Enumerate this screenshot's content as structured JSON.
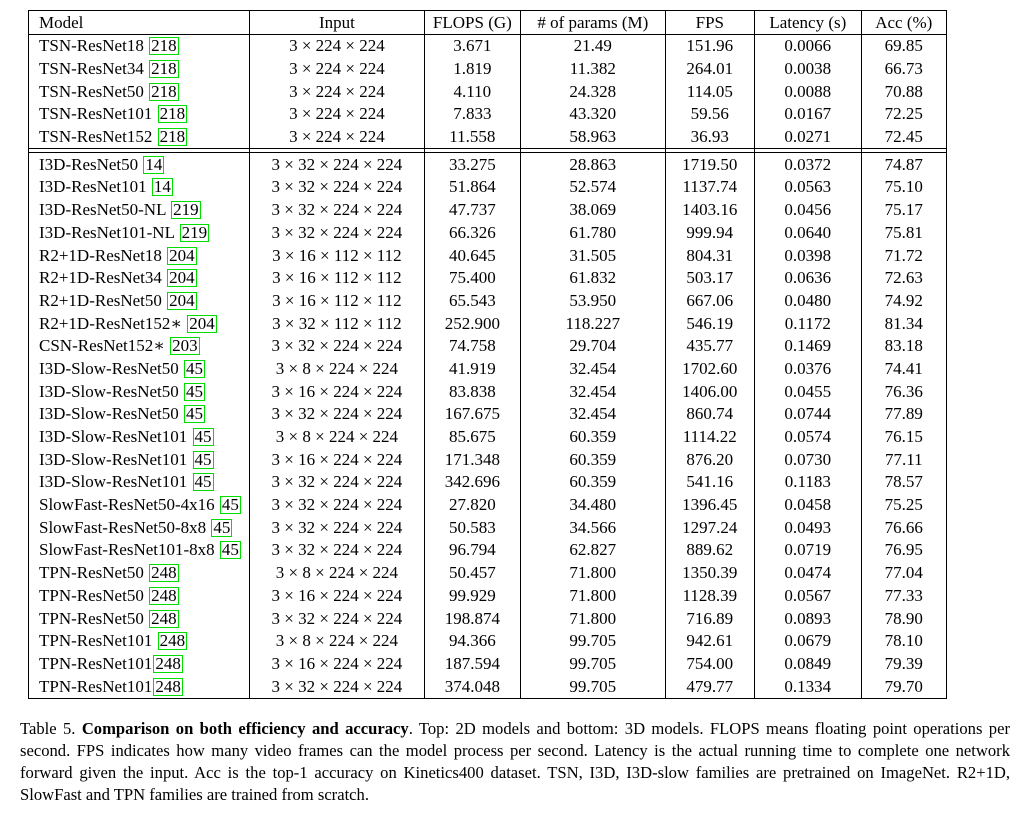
{
  "table": {
    "headers": [
      "Model",
      "Input",
      "FLOPS (G)",
      "# of params (M)",
      "FPS",
      "Latency (s)",
      "Acc (%)"
    ],
    "groups": [
      {
        "rows": [
          {
            "model": "TSN-ResNet18",
            "ref": "218",
            "input": "3 × 224 × 224",
            "flops": "3.671",
            "params": "21.49",
            "fps": "151.96",
            "latency": "0.0066",
            "acc": "69.85"
          },
          {
            "model": "TSN-ResNet34",
            "ref": "218",
            "input": "3 × 224 × 224",
            "flops": "1.819",
            "params": "11.382",
            "fps": "264.01",
            "latency": "0.0038",
            "acc": "66.73"
          },
          {
            "model": "TSN-ResNet50",
            "ref": "218",
            "input": "3 × 224 × 224",
            "flops": "4.110",
            "params": "24.328",
            "fps": "114.05",
            "latency": "0.0088",
            "acc": "70.88"
          },
          {
            "model": "TSN-ResNet101",
            "ref": "218",
            "input": "3 × 224 × 224",
            "flops": "7.833",
            "params": "43.320",
            "fps": "59.56",
            "latency": "0.0167",
            "acc": "72.25"
          },
          {
            "model": "TSN-ResNet152",
            "ref": "218",
            "input": "3 × 224 × 224",
            "flops": "11.558",
            "params": "58.963",
            "fps": "36.93",
            "latency": "0.0271",
            "acc": "72.45"
          }
        ]
      },
      {
        "rows": [
          {
            "model": "I3D-ResNet50",
            "ref": "14",
            "input": "3 × 32 × 224 × 224",
            "flops": "33.275",
            "params": "28.863",
            "fps": "1719.50",
            "latency": "0.0372",
            "acc": "74.87"
          },
          {
            "model": "I3D-ResNet101",
            "ref": "14",
            "input": "3 × 32 × 224 × 224",
            "flops": "51.864",
            "params": "52.574",
            "fps": "1137.74",
            "latency": "0.0563",
            "acc": "75.10"
          },
          {
            "model": "I3D-ResNet50-NL",
            "ref": "219",
            "input": "3 × 32 × 224 × 224",
            "flops": "47.737",
            "params": "38.069",
            "fps": "1403.16",
            "latency": "0.0456",
            "acc": "75.17"
          },
          {
            "model": "I3D-ResNet101-NL",
            "ref": "219",
            "input": "3 × 32 × 224 × 224",
            "flops": "66.326",
            "params": "61.780",
            "fps": "999.94",
            "latency": "0.0640",
            "acc": "75.81"
          },
          {
            "model": "R2+1D-ResNet18",
            "ref": "204",
            "input": "3 × 16 × 112 × 112",
            "flops": "40.645",
            "params": "31.505",
            "fps": "804.31",
            "latency": "0.0398",
            "acc": "71.72"
          },
          {
            "model": "R2+1D-ResNet34",
            "ref": "204",
            "input": "3 × 16 × 112 × 112",
            "flops": "75.400",
            "params": "61.832",
            "fps": "503.17",
            "latency": "0.0636",
            "acc": "72.63"
          },
          {
            "model": "R2+1D-ResNet50",
            "ref": "204",
            "input": "3 × 16 × 112 × 112",
            "flops": "65.543",
            "params": "53.950",
            "fps": "667.06",
            "latency": "0.0480",
            "acc": "74.92"
          },
          {
            "model": "R2+1D-ResNet152∗",
            "ref": "204",
            "input": "3 × 32 × 112 × 112",
            "flops": "252.900",
            "params": "118.227",
            "fps": "546.19",
            "latency": "0.1172",
            "acc": "81.34"
          },
          {
            "model": "CSN-ResNet152∗",
            "ref": "203",
            "input": "3 × 32 × 224 × 224",
            "flops": "74.758",
            "params": "29.704",
            "fps": "435.77",
            "latency": "0.1469",
            "acc": "83.18"
          },
          {
            "model": "I3D-Slow-ResNet50",
            "ref": "45",
            "input": "3 × 8 × 224 × 224",
            "flops": "41.919",
            "params": "32.454",
            "fps": "1702.60",
            "latency": "0.0376",
            "acc": "74.41"
          },
          {
            "model": "I3D-Slow-ResNet50",
            "ref": "45",
            "input": "3 × 16 × 224 × 224",
            "flops": "83.838",
            "params": "32.454",
            "fps": "1406.00",
            "latency": "0.0455",
            "acc": "76.36"
          },
          {
            "model": "I3D-Slow-ResNet50",
            "ref": "45",
            "input": "3 × 32 × 224 × 224",
            "flops": "167.675",
            "params": "32.454",
            "fps": "860.74",
            "latency": "0.0744",
            "acc": "77.89"
          },
          {
            "model": "I3D-Slow-ResNet101",
            "ref": "45",
            "input": "3 × 8 × 224 × 224",
            "flops": "85.675",
            "params": "60.359",
            "fps": "1114.22",
            "latency": "0.0574",
            "acc": "76.15"
          },
          {
            "model": "I3D-Slow-ResNet101",
            "ref": "45",
            "input": "3 × 16 × 224 × 224",
            "flops": "171.348",
            "params": "60.359",
            "fps": "876.20",
            "latency": "0.0730",
            "acc": "77.11"
          },
          {
            "model": "I3D-Slow-ResNet101",
            "ref": "45",
            "input": "3 × 32 × 224 × 224",
            "flops": "342.696",
            "params": "60.359",
            "fps": "541.16",
            "latency": "0.1183",
            "acc": "78.57"
          },
          {
            "model": "SlowFast-ResNet50-4x16",
            "ref": "45",
            "input": "3 × 32 × 224 × 224",
            "flops": "27.820",
            "params": "34.480",
            "fps": "1396.45",
            "latency": "0.0458",
            "acc": "75.25"
          },
          {
            "model": "SlowFast-ResNet50-8x8",
            "ref": "45",
            "input": "3 × 32 × 224 × 224",
            "flops": "50.583",
            "params": "34.566",
            "fps": "1297.24",
            "latency": "0.0493",
            "acc": "76.66"
          },
          {
            "model": "SlowFast-ResNet101-8x8",
            "ref": "45",
            "input": "3 × 32 × 224 × 224",
            "flops": "96.794",
            "params": "62.827",
            "fps": "889.62",
            "latency": "0.0719",
            "acc": "76.95"
          },
          {
            "model": "TPN-ResNet50",
            "ref": "248",
            "input": "3 × 8 × 224 × 224",
            "flops": "50.457",
            "params": "71.800",
            "fps": "1350.39",
            "latency": "0.0474",
            "acc": "77.04"
          },
          {
            "model": "TPN-ResNet50",
            "ref": "248",
            "input": "3 × 16 × 224 × 224",
            "flops": "99.929",
            "params": "71.800",
            "fps": "1128.39",
            "latency": "0.0567",
            "acc": "77.33"
          },
          {
            "model": "TPN-ResNet50",
            "ref": "248",
            "input": "3 × 32 × 224 × 224",
            "flops": "198.874",
            "params": "71.800",
            "fps": "716.89",
            "latency": "0.0893",
            "acc": "78.90"
          },
          {
            "model": "TPN-ResNet101",
            "ref": "248",
            "input": "3 × 8 × 224 × 224",
            "flops": "94.366",
            "params": "99.705",
            "fps": "942.61",
            "latency": "0.0679",
            "acc": "78.10"
          },
          {
            "model": "TPN-ResNet101",
            "ref": "248",
            "input": "3 × 16 × 224 × 224",
            "flops": "187.594",
            "params": "99.705",
            "fps": "754.00",
            "latency": "0.0849",
            "acc": "79.39"
          },
          {
            "model": "TPN-ResNet101",
            "ref": "248",
            "input": "3 × 32 × 224 × 224",
            "flops": "374.048",
            "params": "99.705",
            "fps": "479.77",
            "latency": "0.1334",
            "acc": "79.70"
          }
        ]
      }
    ]
  },
  "caption": {
    "label": "Table 5.",
    "bold": "Comparison on both efficiency and accuracy",
    "text": ". Top: 2D models and bottom: 3D models. FLOPS means floating point operations per second. FPS indicates how many video frames can the model process per second. Latency is the actual running time to complete one network forward given the input. Acc is the top-1 accuracy on Kinetics400 dataset. TSN, I3D, I3D-slow families are pretrained on ImageNet. R2+1D, SlowFast and TPN families are trained from scratch."
  },
  "colors": {
    "ref_box": "#00dd00"
  }
}
